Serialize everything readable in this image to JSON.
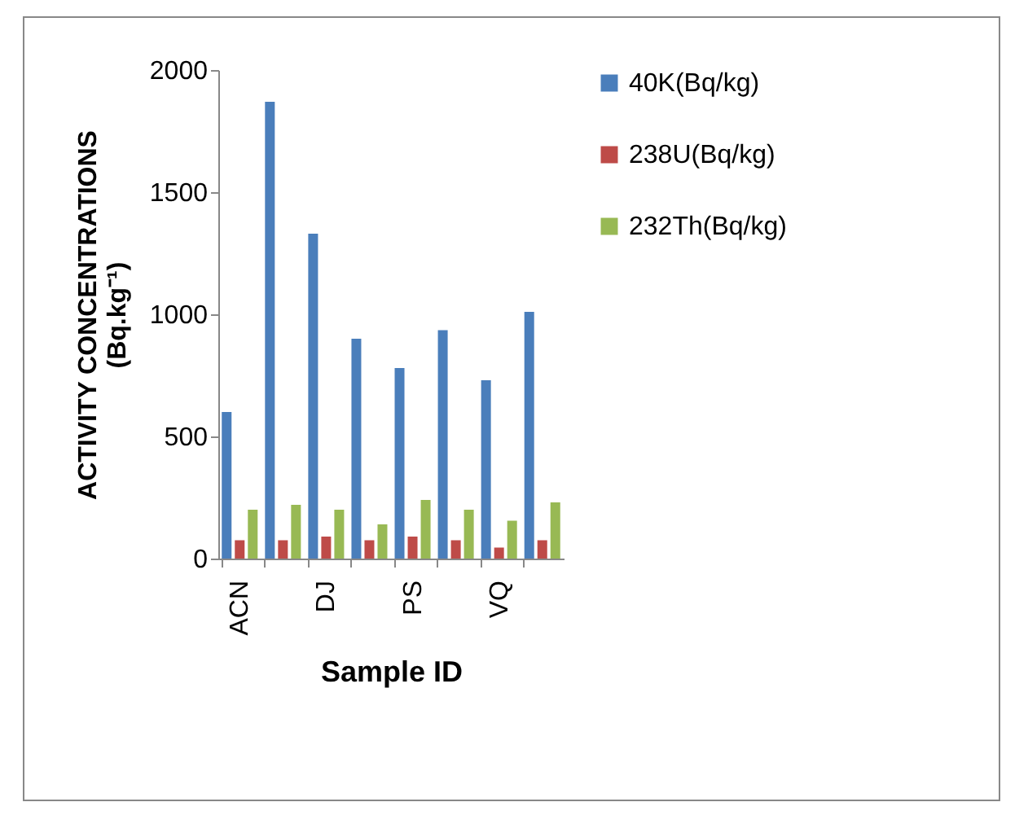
{
  "chart_data": {
    "type": "bar",
    "xlabel": "Sample ID",
    "ylabel": "ACTIVITY CONCENTRATIONS (Bq.kg⁻¹)",
    "categories": [
      "ACN",
      null,
      "DJ",
      null,
      "PS",
      null,
      "VQ",
      null
    ],
    "series": [
      {
        "name": "40K(Bq/kg)",
        "color": "#4a7ebb",
        "values": [
          600,
          1870,
          1330,
          900,
          780,
          935,
          730,
          1010
        ]
      },
      {
        "name": "238U(Bq/kg)",
        "color": "#be4b48",
        "values": [
          75,
          75,
          90,
          75,
          90,
          75,
          45,
          75
        ]
      },
      {
        "name": "232Th(Bq/kg)",
        "color": "#98b954",
        "values": [
          200,
          220,
          200,
          140,
          240,
          200,
          155,
          230
        ]
      }
    ],
    "ylim": [
      0,
      2000
    ],
    "yticks": [
      0,
      500,
      1000,
      1500,
      2000
    ],
    "grid": false,
    "legend": "right"
  }
}
